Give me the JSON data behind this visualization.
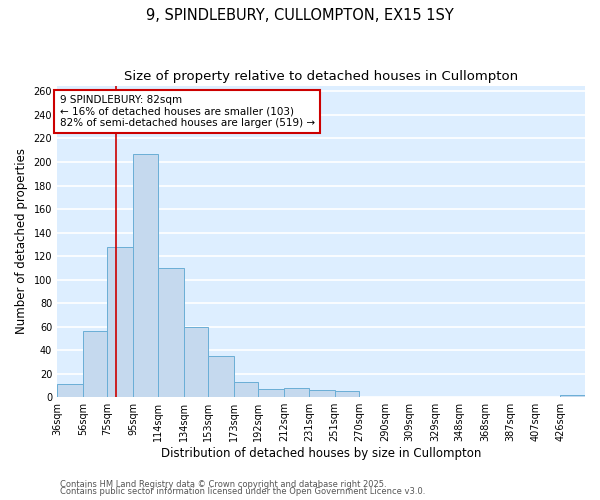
{
  "title": "9, SPINDLEBURY, CULLOMPTON, EX15 1SY",
  "subtitle": "Size of property relative to detached houses in Cullompton",
  "xlabel": "Distribution of detached houses by size in Cullompton",
  "ylabel": "Number of detached properties",
  "bar_edges": [
    36,
    56,
    75,
    95,
    114,
    134,
    153,
    173,
    192,
    212,
    231,
    251,
    270,
    290,
    309,
    329,
    348,
    368,
    387,
    407,
    426
  ],
  "bar_heights": [
    11,
    56,
    128,
    207,
    110,
    60,
    35,
    13,
    7,
    8,
    6,
    5,
    0,
    0,
    0,
    0,
    0,
    0,
    0,
    0,
    2
  ],
  "bar_color": "#c5d9ee",
  "bar_edgecolor": "#6aaed6",
  "background_color": "#ddeeff",
  "grid_color": "#ffffff",
  "property_line_x": 82,
  "property_line_color": "#cc0000",
  "annotation_text": "9 SPINDLEBURY: 82sqm\n← 16% of detached houses are smaller (103)\n82% of semi-detached houses are larger (519) →",
  "annotation_box_edgecolor": "#cc0000",
  "ylim": [
    0,
    265
  ],
  "yticks": [
    0,
    20,
    40,
    60,
    80,
    100,
    120,
    140,
    160,
    180,
    200,
    220,
    240,
    260
  ],
  "footnote1": "Contains HM Land Registry data © Crown copyright and database right 2025.",
  "footnote2": "Contains public sector information licensed under the Open Government Licence v3.0.",
  "title_fontsize": 10.5,
  "subtitle_fontsize": 9.5,
  "tick_label_fontsize": 7,
  "axis_label_fontsize": 8.5,
  "annotation_fontsize": 7.5,
  "footnote_fontsize": 6.0
}
